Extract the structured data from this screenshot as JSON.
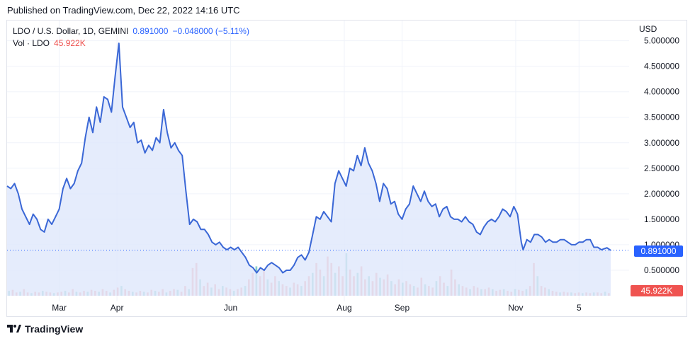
{
  "header": {
    "published": "Published on TradingView.com, Dec 22, 2022 14:16 UTC"
  },
  "legend": {
    "symbol": "LDO / U.S. Dollar, 1D, GEMINI",
    "price": "0.891000",
    "change": "−0.048000 (−5.11%)",
    "vol_label": "Vol · LDO",
    "vol_value": "45.922K"
  },
  "axis": {
    "currency": "USD"
  },
  "tags": {
    "last_price": "0.891000",
    "last_volume": "45.922K"
  },
  "brand": {
    "name": "TradingView"
  },
  "colors": {
    "line": "#2962ff",
    "line_stroke": "#3a67d6",
    "fill": "#dfe7fb",
    "vol_up": "#26a69a",
    "vol_down": "#ef5350",
    "grid": "#f0f3fa"
  },
  "chart_data": {
    "type": "area",
    "ylabel": "USD",
    "ylim": [
      0,
      5.3
    ],
    "yticks": [
      0.5,
      1.0,
      1.5,
      2.0,
      2.5,
      3.0,
      3.5,
      4.0,
      4.5,
      5.0
    ],
    "ytick_labels": [
      "0.500000",
      "1.000000",
      "1.500000",
      "2.000000",
      "2.500000",
      "3.000000",
      "3.500000",
      "4.000000",
      "4.500000",
      "5.000000"
    ],
    "xtick_labels": [
      "Mar",
      "Apr",
      "Jun",
      "Aug",
      "Sep",
      "Nov",
      "5"
    ],
    "xtick_dates": [
      "2022-03-01",
      "2022-04-01",
      "2022-06-01",
      "2022-08-01",
      "2022-09-01",
      "2022-11-01",
      "2022-12-05"
    ],
    "x_range": [
      "2022-02-01",
      "2022-12-22"
    ],
    "series": [
      {
        "points": [
          [
            "2022-02-01",
            2.15
          ],
          [
            "2022-02-03",
            2.1
          ],
          [
            "2022-02-05",
            2.2
          ],
          [
            "2022-02-07",
            2.0
          ],
          [
            "2022-02-09",
            1.7
          ],
          [
            "2022-02-11",
            1.55
          ],
          [
            "2022-02-13",
            1.4
          ],
          [
            "2022-02-15",
            1.6
          ],
          [
            "2022-02-17",
            1.5
          ],
          [
            "2022-02-19",
            1.3
          ],
          [
            "2022-02-21",
            1.25
          ],
          [
            "2022-02-23",
            1.5
          ],
          [
            "2022-02-25",
            1.4
          ],
          [
            "2022-02-27",
            1.55
          ],
          [
            "2022-03-01",
            1.7
          ],
          [
            "2022-03-03",
            2.1
          ],
          [
            "2022-03-05",
            2.3
          ],
          [
            "2022-03-07",
            2.1
          ],
          [
            "2022-03-09",
            2.2
          ],
          [
            "2022-03-11",
            2.45
          ],
          [
            "2022-03-13",
            2.6
          ],
          [
            "2022-03-15",
            3.1
          ],
          [
            "2022-03-17",
            3.5
          ],
          [
            "2022-03-19",
            3.2
          ],
          [
            "2022-03-21",
            3.7
          ],
          [
            "2022-03-23",
            3.4
          ],
          [
            "2022-03-25",
            3.9
          ],
          [
            "2022-03-27",
            3.85
          ],
          [
            "2022-03-29",
            3.6
          ],
          [
            "2022-03-31",
            4.3
          ],
          [
            "2022-04-02",
            4.95
          ],
          [
            "2022-04-04",
            3.7
          ],
          [
            "2022-04-06",
            3.5
          ],
          [
            "2022-04-08",
            3.3
          ],
          [
            "2022-04-10",
            3.4
          ],
          [
            "2022-04-12",
            3.0
          ],
          [
            "2022-04-14",
            3.05
          ],
          [
            "2022-04-16",
            2.8
          ],
          [
            "2022-04-18",
            2.95
          ],
          [
            "2022-04-20",
            2.85
          ],
          [
            "2022-04-22",
            3.1
          ],
          [
            "2022-04-24",
            3.0
          ],
          [
            "2022-04-26",
            3.65
          ],
          [
            "2022-04-28",
            3.2
          ],
          [
            "2022-04-30",
            2.9
          ],
          [
            "2022-05-02",
            3.0
          ],
          [
            "2022-05-04",
            2.85
          ],
          [
            "2022-05-06",
            2.75
          ],
          [
            "2022-05-08",
            2.05
          ],
          [
            "2022-05-10",
            1.4
          ],
          [
            "2022-05-12",
            1.5
          ],
          [
            "2022-05-14",
            1.45
          ],
          [
            "2022-05-16",
            1.3
          ],
          [
            "2022-05-18",
            1.3
          ],
          [
            "2022-05-20",
            1.2
          ],
          [
            "2022-05-22",
            1.05
          ],
          [
            "2022-05-24",
            1.0
          ],
          [
            "2022-05-26",
            1.05
          ],
          [
            "2022-05-28",
            0.95
          ],
          [
            "2022-05-30",
            0.9
          ],
          [
            "2022-06-01",
            0.95
          ],
          [
            "2022-06-03",
            0.9
          ],
          [
            "2022-06-05",
            0.95
          ],
          [
            "2022-06-07",
            0.85
          ],
          [
            "2022-06-09",
            0.75
          ],
          [
            "2022-06-11",
            0.6
          ],
          [
            "2022-06-13",
            0.55
          ],
          [
            "2022-06-15",
            0.45
          ],
          [
            "2022-06-17",
            0.55
          ],
          [
            "2022-06-19",
            0.5
          ],
          [
            "2022-06-21",
            0.6
          ],
          [
            "2022-06-23",
            0.65
          ],
          [
            "2022-06-25",
            0.6
          ],
          [
            "2022-06-27",
            0.55
          ],
          [
            "2022-06-29",
            0.45
          ],
          [
            "2022-07-01",
            0.5
          ],
          [
            "2022-07-03",
            0.5
          ],
          [
            "2022-07-05",
            0.6
          ],
          [
            "2022-07-07",
            0.75
          ],
          [
            "2022-07-09",
            0.8
          ],
          [
            "2022-07-11",
            0.7
          ],
          [
            "2022-07-13",
            0.85
          ],
          [
            "2022-07-15",
            1.2
          ],
          [
            "2022-07-17",
            1.55
          ],
          [
            "2022-07-19",
            1.5
          ],
          [
            "2022-07-21",
            1.65
          ],
          [
            "2022-07-23",
            1.55
          ],
          [
            "2022-07-25",
            1.45
          ],
          [
            "2022-07-27",
            2.2
          ],
          [
            "2022-07-29",
            2.45
          ],
          [
            "2022-07-31",
            2.3
          ],
          [
            "2022-08-02",
            2.15
          ],
          [
            "2022-08-04",
            2.5
          ],
          [
            "2022-08-06",
            2.45
          ],
          [
            "2022-08-08",
            2.75
          ],
          [
            "2022-08-10",
            2.55
          ],
          [
            "2022-08-12",
            2.9
          ],
          [
            "2022-08-14",
            2.6
          ],
          [
            "2022-08-16",
            2.45
          ],
          [
            "2022-08-18",
            2.2
          ],
          [
            "2022-08-20",
            1.85
          ],
          [
            "2022-08-22",
            2.2
          ],
          [
            "2022-08-24",
            2.1
          ],
          [
            "2022-08-26",
            1.8
          ],
          [
            "2022-08-28",
            1.85
          ],
          [
            "2022-08-30",
            1.6
          ],
          [
            "2022-09-01",
            1.5
          ],
          [
            "2022-09-03",
            1.7
          ],
          [
            "2022-09-05",
            1.8
          ],
          [
            "2022-09-07",
            2.15
          ],
          [
            "2022-09-09",
            2.0
          ],
          [
            "2022-09-11",
            1.85
          ],
          [
            "2022-09-13",
            2.05
          ],
          [
            "2022-09-15",
            1.85
          ],
          [
            "2022-09-17",
            1.75
          ],
          [
            "2022-09-19",
            1.8
          ],
          [
            "2022-09-21",
            1.55
          ],
          [
            "2022-09-23",
            1.7
          ],
          [
            "2022-09-25",
            1.75
          ],
          [
            "2022-09-27",
            1.55
          ],
          [
            "2022-09-29",
            1.5
          ],
          [
            "2022-10-01",
            1.5
          ],
          [
            "2022-10-03",
            1.45
          ],
          [
            "2022-10-05",
            1.55
          ],
          [
            "2022-10-07",
            1.45
          ],
          [
            "2022-10-09",
            1.4
          ],
          [
            "2022-10-11",
            1.25
          ],
          [
            "2022-10-13",
            1.2
          ],
          [
            "2022-10-15",
            1.35
          ],
          [
            "2022-10-17",
            1.45
          ],
          [
            "2022-10-19",
            1.5
          ],
          [
            "2022-10-21",
            1.45
          ],
          [
            "2022-10-23",
            1.55
          ],
          [
            "2022-10-25",
            1.7
          ],
          [
            "2022-10-27",
            1.65
          ],
          [
            "2022-10-29",
            1.55
          ],
          [
            "2022-10-31",
            1.75
          ],
          [
            "2022-11-02",
            1.6
          ],
          [
            "2022-11-04",
            1.05
          ],
          [
            "2022-11-05",
            0.9
          ],
          [
            "2022-11-07",
            1.1
          ],
          [
            "2022-11-09",
            1.05
          ],
          [
            "2022-11-11",
            1.2
          ],
          [
            "2022-11-13",
            1.2
          ],
          [
            "2022-11-15",
            1.15
          ],
          [
            "2022-11-17",
            1.05
          ],
          [
            "2022-11-19",
            1.1
          ],
          [
            "2022-11-21",
            1.05
          ],
          [
            "2022-11-23",
            1.05
          ],
          [
            "2022-11-25",
            1.1
          ],
          [
            "2022-11-27",
            1.1
          ],
          [
            "2022-11-29",
            1.05
          ],
          [
            "2022-12-01",
            1.0
          ],
          [
            "2022-12-03",
            1.0
          ],
          [
            "2022-12-05",
            1.05
          ],
          [
            "2022-12-07",
            1.05
          ],
          [
            "2022-12-09",
            1.1
          ],
          [
            "2022-12-11",
            1.1
          ],
          [
            "2022-12-13",
            0.95
          ],
          [
            "2022-12-15",
            0.95
          ],
          [
            "2022-12-17",
            0.9
          ],
          [
            "2022-12-20",
            0.94
          ],
          [
            "2022-12-22",
            0.891
          ]
        ]
      }
    ],
    "volume_bars": [
      0.15,
      0.18,
      0.1,
      0.12,
      0.2,
      0.1,
      0.08,
      0.12,
      0.1,
      0.15,
      0.12,
      0.1,
      0.08,
      0.1,
      0.12,
      0.15,
      0.1,
      0.2,
      0.12,
      0.1,
      0.15,
      0.12,
      0.18,
      0.15,
      0.12,
      0.2,
      0.15,
      0.1,
      0.18,
      0.25,
      0.3,
      0.2,
      0.15,
      0.12,
      0.1,
      0.15,
      0.12,
      0.1,
      0.18,
      0.15,
      0.12,
      0.2,
      0.1,
      0.15,
      0.2,
      0.18,
      0.12,
      0.3,
      0.2,
      0.85,
      1.0,
      0.5,
      0.3,
      0.4,
      0.25,
      0.35,
      0.2,
      0.3,
      0.25,
      0.2,
      0.15,
      0.2,
      0.25,
      0.3,
      0.5,
      0.7,
      0.9,
      0.6,
      0.8,
      0.5,
      0.4,
      0.6,
      0.45,
      0.35,
      0.3,
      0.25,
      0.4,
      0.35,
      0.3,
      0.45,
      0.6,
      0.7,
      1.0,
      0.8,
      0.6,
      1.2,
      1.0,
      0.7,
      0.9,
      0.6,
      1.3,
      0.8,
      0.6,
      0.7,
      0.9,
      0.5,
      0.6,
      0.45,
      0.7,
      0.55,
      0.5,
      0.65,
      0.45,
      0.35,
      0.5,
      0.4,
      0.45,
      0.35,
      0.3,
      0.25,
      0.55,
      0.35,
      0.3,
      0.25,
      0.45,
      0.6,
      0.4,
      0.3,
      0.8,
      0.5,
      0.35,
      0.3,
      0.25,
      0.2,
      0.3,
      0.25,
      0.2,
      0.2,
      0.25,
      0.2,
      0.15,
      0.18,
      0.2,
      0.15,
      0.12,
      0.2,
      0.18,
      0.15,
      0.2,
      0.3,
      1.0,
      0.6,
      0.3,
      0.25,
      0.2,
      0.15,
      0.12,
      0.1,
      0.12,
      0.1,
      0.1,
      0.08,
      0.1,
      0.08,
      0.1,
      0.08,
      0.1,
      0.1,
      0.08,
      0.12,
      0.08
    ]
  }
}
